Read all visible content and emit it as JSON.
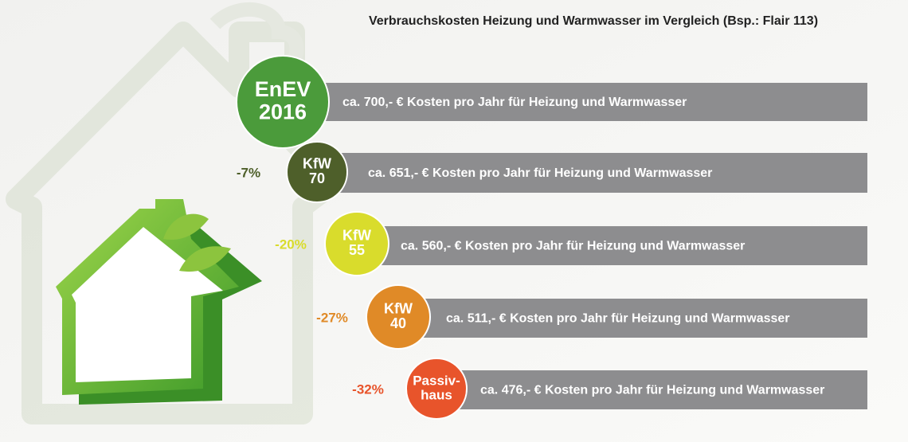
{
  "title": "Verbrauchskosten Heizung und Warmwasser im Vergleich (Bsp.: Flair 113)",
  "rows": [
    {
      "badge": [
        "EnEV",
        "2016"
      ],
      "percent": null,
      "text": "ca. 700,- € Kosten pro Jahr für Heizung und Warmwasser",
      "color": "#4b9b3b"
    },
    {
      "badge": [
        "KfW",
        "70"
      ],
      "percent": "-7%",
      "text": "ca. 651,- € Kosten pro Jahr für Heizung und Warmwasser",
      "color": "#4e5f2a"
    },
    {
      "badge": [
        "KfW",
        "55"
      ],
      "percent": "-20%",
      "text": "ca. 560,- € Kosten pro Jahr für Heizung und Warmwasser",
      "color": "#d9dc2c"
    },
    {
      "badge": [
        "KfW",
        "40"
      ],
      "percent": "-27%",
      "text": "ca. 511,- € Kosten pro Jahr für Heizung und Warmwasser",
      "color": "#e08a27"
    },
    {
      "badge": [
        "Passiv-",
        "haus"
      ],
      "percent": "-32%",
      "text": "ca. 476,- € Kosten pro Jahr für Heizung und Warmwasser",
      "color": "#e8542b"
    }
  ]
}
